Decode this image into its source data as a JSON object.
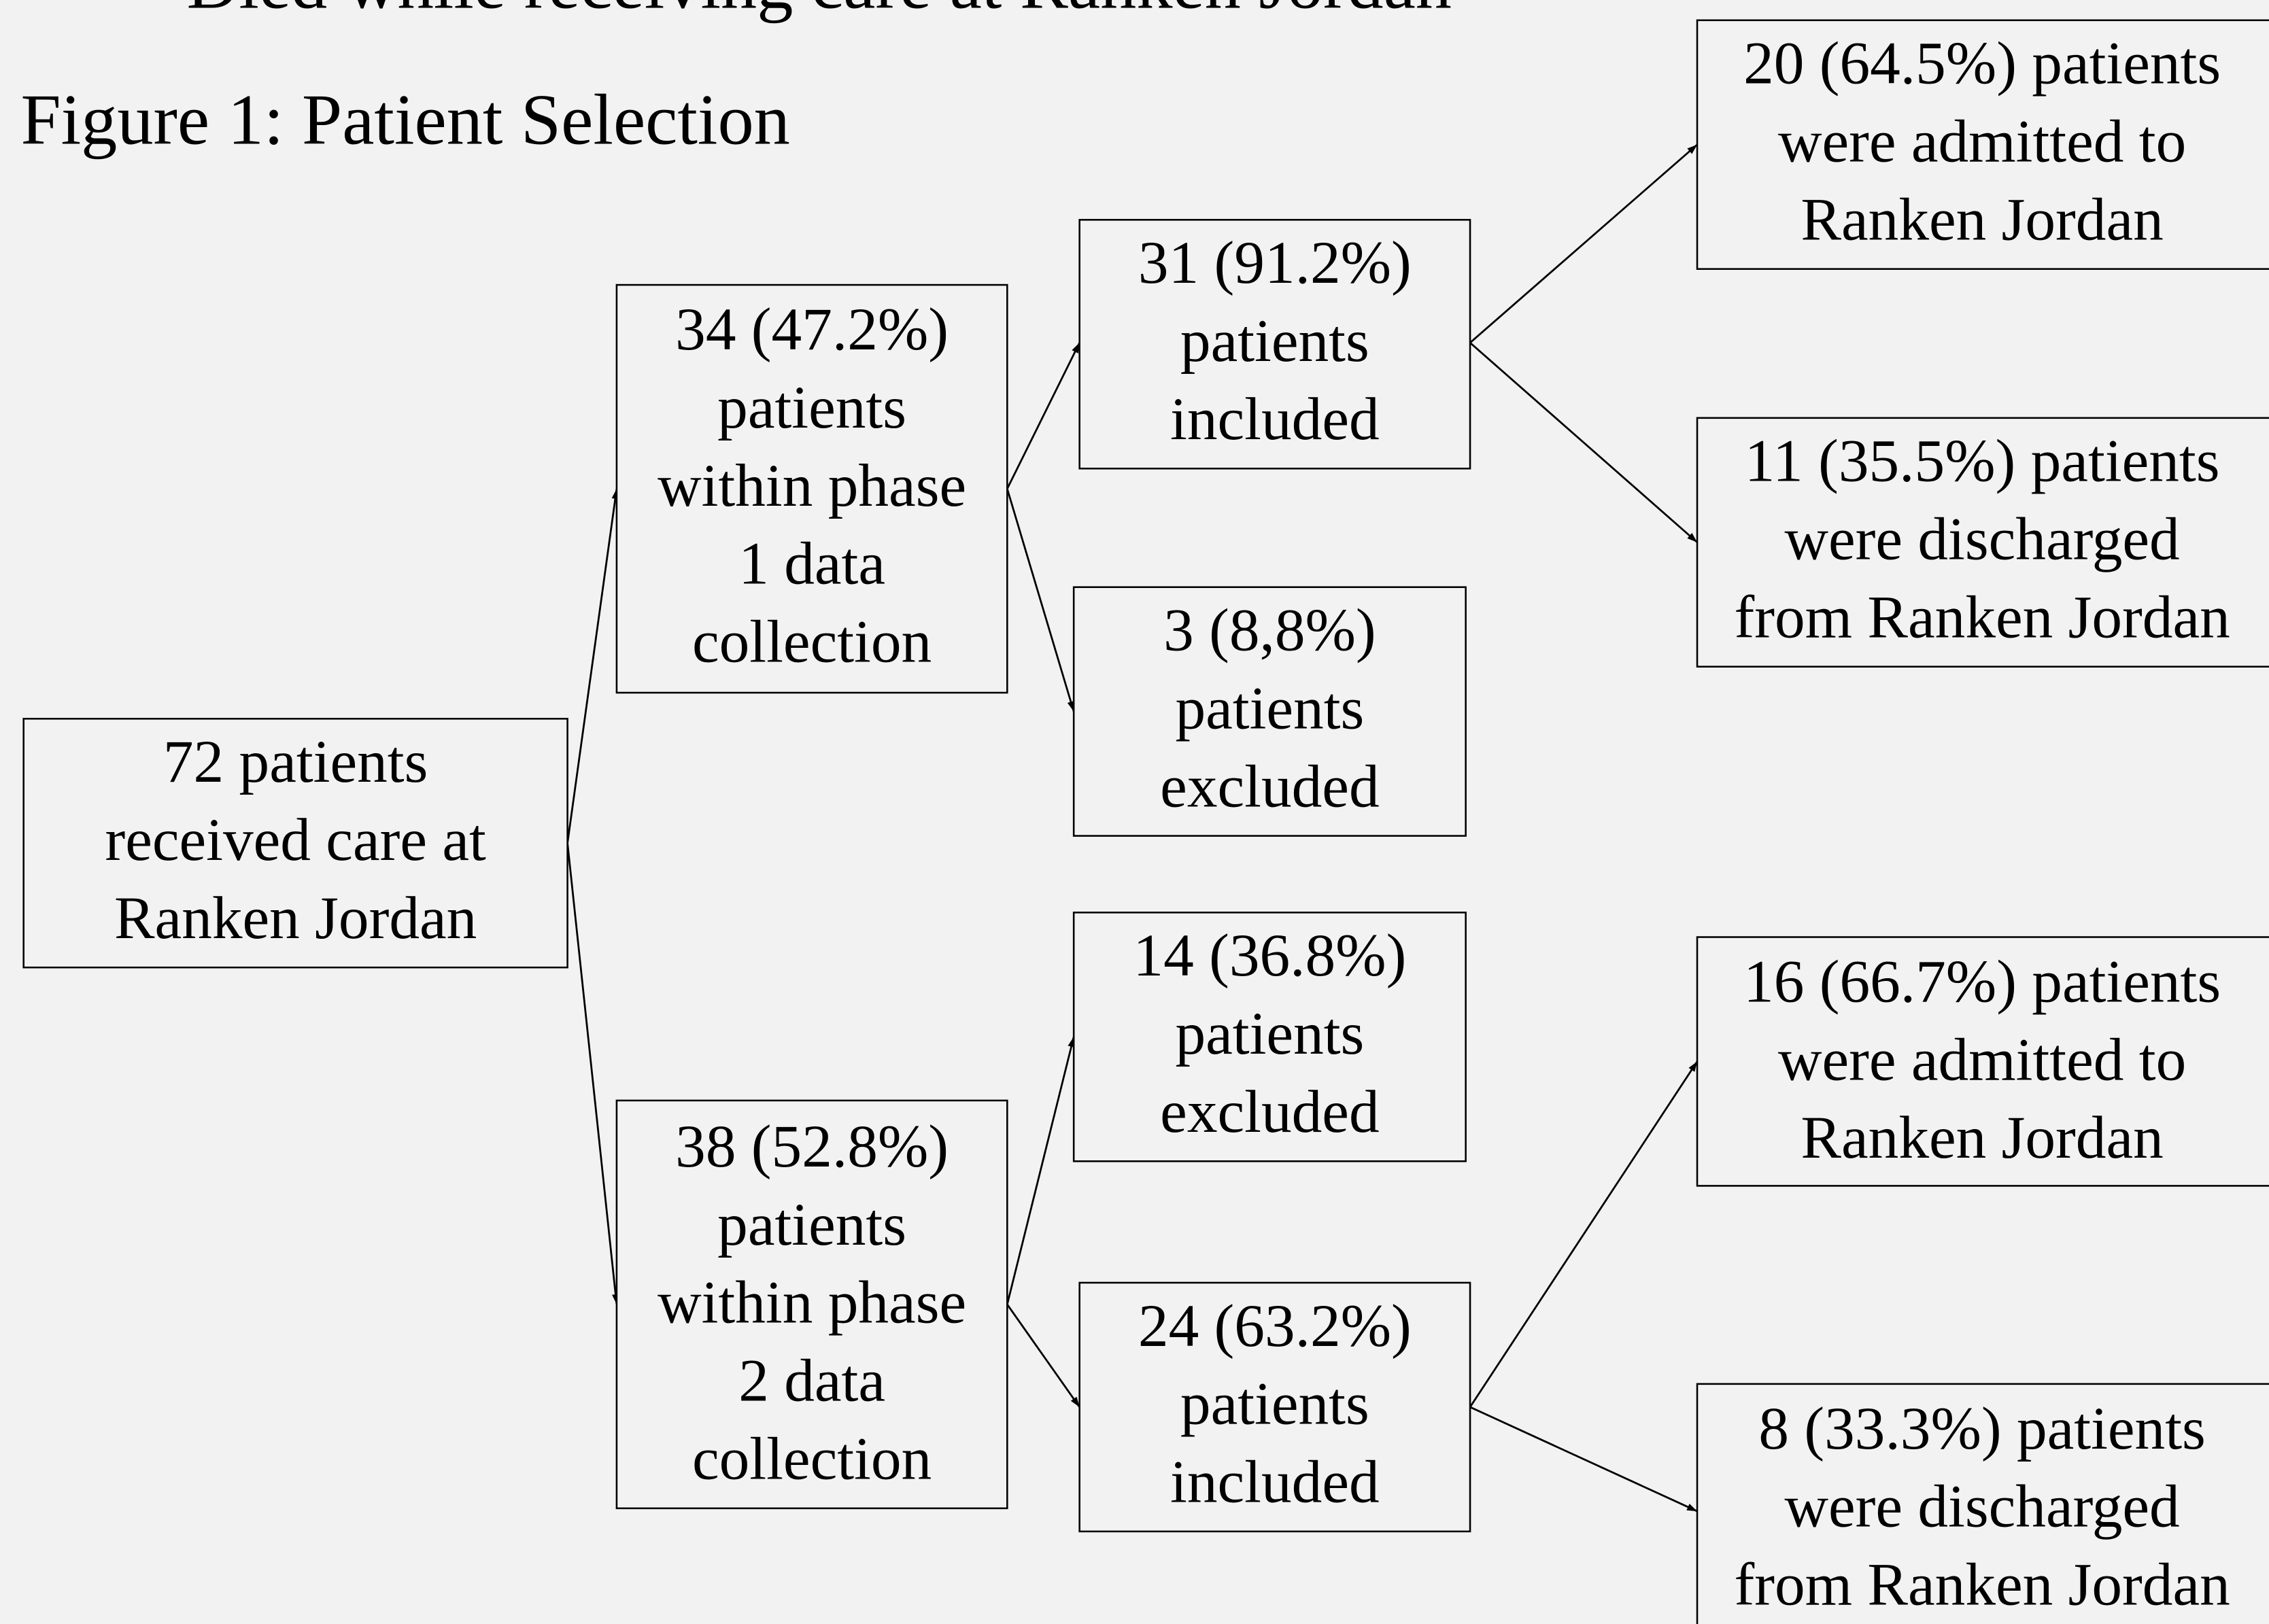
{
  "header": {
    "top_text": "Died while receiving care at Ranken Jordan",
    "title": "Figure 1: Patient Selection"
  },
  "nodes": [
    {
      "lines": [
        "72 patients",
        "received care at",
        "Ranken Jordan"
      ]
    },
    {
      "lines": [
        "34 (47.2%)",
        "patients",
        "within phase",
        "1 data",
        "collection"
      ]
    },
    {
      "lines": [
        "38 (52.8%)",
        "patients",
        "within phase",
        "2 data",
        "collection"
      ]
    },
    {
      "lines": [
        "31 (91.2%)",
        "patients",
        "included"
      ]
    },
    {
      "lines": [
        "3 (8,8%)",
        "patients",
        "excluded"
      ]
    },
    {
      "lines": [
        "14 (36.8%)",
        "patients",
        "excluded"
      ]
    },
    {
      "lines": [
        "24 (63.2%)",
        "patients",
        "included"
      ]
    },
    {
      "lines": [
        "20 (64.5%) patients",
        "were admitted to",
        "Ranken Jordan"
      ]
    },
    {
      "lines": [
        "11 (35.5%) patients",
        "were discharged",
        "from Ranken Jordan"
      ]
    },
    {
      "lines": [
        "16 (66.7%) patients",
        "were admitted to",
        "Ranken Jordan"
      ]
    },
    {
      "lines": [
        "8 (33.3%) patients",
        "were discharged",
        "from Ranken Jordan"
      ]
    }
  ]
}
